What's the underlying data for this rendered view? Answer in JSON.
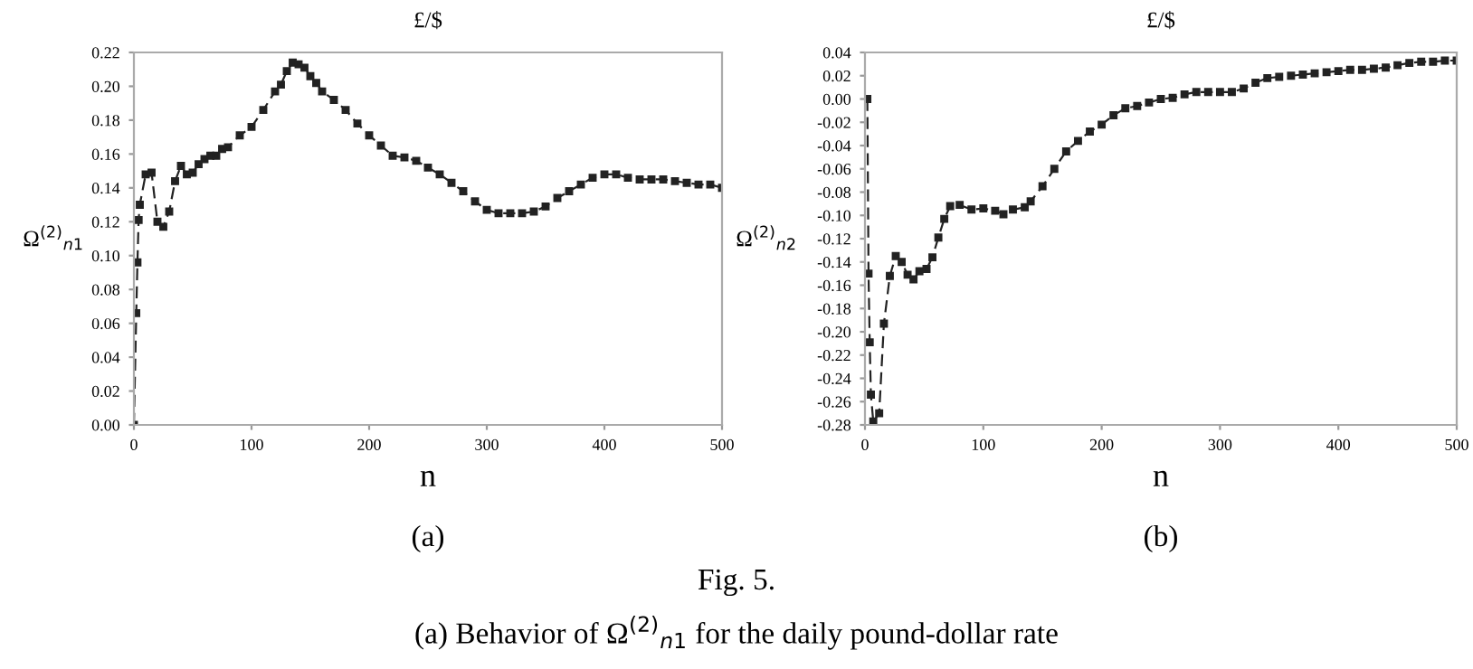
{
  "chart_data": [
    {
      "type": "line",
      "title": "£/$",
      "xlabel": "n",
      "ylabel": "Ω$^{(2)}$$_{n1}$",
      "marker": "square",
      "line_style": "dashed",
      "grid": false,
      "legend": false,
      "xlim": [
        0,
        500
      ],
      "xticks": [
        0,
        100,
        200,
        300,
        400,
        500
      ],
      "ylim": [
        0,
        0.22
      ],
      "yticks": [
        {
          "value": 0,
          "label": "0.00"
        },
        {
          "value": 0.02,
          "label": "0.02"
        },
        {
          "value": 0.04,
          "label": "0.04"
        },
        {
          "value": 0.06,
          "label": "0.06"
        },
        {
          "value": 0.08,
          "label": "0.08"
        },
        {
          "value": 0.1,
          "label": "0.10"
        },
        {
          "value": 0.12,
          "label": "0.12"
        },
        {
          "value": 0.14,
          "label": "0.14"
        },
        {
          "value": 0.16,
          "label": "0.16"
        },
        {
          "value": 0.18,
          "label": "0.18"
        },
        {
          "value": 0.2,
          "label": "0.20"
        },
        {
          "value": 0.22,
          "label": "0.22"
        }
      ],
      "annotations": [
        "(a)",
        "Fig. 5.",
        "(a) Behavior of Ω$^{(2)}$$_{n1}$ for the daily pound-dollar rate"
      ],
      "series": [
        {
          "color": "#222222",
          "x": [
            0,
            2,
            3,
            4,
            5,
            10,
            15,
            20,
            25,
            30,
            35,
            40,
            45,
            50,
            55,
            60,
            65,
            70,
            75,
            80,
            90,
            100,
            110,
            120,
            125,
            130,
            135,
            140,
            145,
            150,
            155,
            160,
            170,
            180,
            190,
            200,
            210,
            220,
            230,
            240,
            250,
            260,
            270,
            280,
            290,
            300,
            310,
            320,
            330,
            340,
            350,
            360,
            370,
            380,
            390,
            400,
            410,
            420,
            430,
            440,
            450,
            460,
            470,
            480,
            490,
            500
          ],
          "values": [
            0.0,
            0.066,
            0.096,
            0.121,
            0.13,
            0.148,
            0.149,
            0.12,
            0.117,
            0.126,
            0.144,
            0.153,
            0.148,
            0.149,
            0.154,
            0.157,
            0.159,
            0.159,
            0.163,
            0.164,
            0.171,
            0.176,
            0.186,
            0.197,
            0.201,
            0.209,
            0.214,
            0.213,
            0.211,
            0.206,
            0.202,
            0.197,
            0.192,
            0.186,
            0.178,
            0.171,
            0.165,
            0.159,
            0.158,
            0.156,
            0.152,
            0.148,
            0.143,
            0.138,
            0.132,
            0.127,
            0.125,
            0.125,
            0.125,
            0.126,
            0.129,
            0.134,
            0.138,
            0.142,
            0.146,
            0.148,
            0.148,
            0.146,
            0.145,
            0.145,
            0.145,
            0.144,
            0.143,
            0.142,
            0.142,
            0.14
          ]
        }
      ]
    },
    {
      "type": "line",
      "title": "£/$",
      "xlabel": "n",
      "ylabel": "Ω$^{(2)}$$_{n2}$",
      "marker": "square",
      "line_style": "dashed",
      "grid": false,
      "legend": false,
      "xlim": [
        0,
        500
      ],
      "xticks": [
        0,
        100,
        200,
        300,
        400,
        500
      ],
      "ylim": [
        -0.28,
        0.04
      ],
      "yticks": [
        {
          "value": -0.28,
          "label": "-0.28"
        },
        {
          "value": -0.26,
          "label": "-0.26"
        },
        {
          "value": -0.24,
          "label": "-0.24"
        },
        {
          "value": -0.22,
          "label": "-0.22"
        },
        {
          "value": -0.2,
          "label": "-0.20"
        },
        {
          "value": -0.18,
          "label": "-0.18"
        },
        {
          "value": -0.16,
          "label": "-0.16"
        },
        {
          "value": -0.14,
          "label": "-0.14"
        },
        {
          "value": -0.12,
          "label": "-0.12"
        },
        {
          "value": -0.1,
          "label": "-0.10"
        },
        {
          "value": -0.08,
          "label": "-0.08"
        },
        {
          "value": -0.06,
          "label": "-0.06"
        },
        {
          "value": -0.04,
          "label": "-0.04"
        },
        {
          "value": -0.02,
          "label": "-0.02"
        },
        {
          "value": 0,
          "label": "0.00"
        },
        {
          "value": 0.02,
          "label": "0.02"
        },
        {
          "value": 0.04,
          "label": "0.04"
        }
      ],
      "annotations": [
        "(b)"
      ],
      "series": [
        {
          "color": "#222222",
          "x": [
            2,
            3,
            4,
            5,
            7,
            12,
            16,
            21,
            26,
            31,
            36,
            41,
            46,
            52,
            57,
            62,
            67,
            72,
            80,
            90,
            100,
            110,
            117,
            125,
            135,
            140,
            150,
            160,
            170,
            180,
            190,
            200,
            210,
            220,
            230,
            240,
            250,
            260,
            270,
            280,
            290,
            300,
            310,
            320,
            330,
            340,
            350,
            360,
            370,
            380,
            390,
            400,
            410,
            420,
            430,
            440,
            450,
            460,
            470,
            480,
            490,
            500
          ],
          "values": [
            0.0,
            -0.15,
            -0.209,
            -0.254,
            -0.277,
            -0.27,
            -0.193,
            -0.152,
            -0.135,
            -0.14,
            -0.151,
            -0.155,
            -0.148,
            -0.146,
            -0.136,
            -0.119,
            -0.103,
            -0.092,
            -0.091,
            -0.095,
            -0.094,
            -0.096,
            -0.099,
            -0.095,
            -0.093,
            -0.088,
            -0.075,
            -0.06,
            -0.045,
            -0.036,
            -0.028,
            -0.022,
            -0.014,
            -0.008,
            -0.006,
            -0.003,
            0.0,
            0.001,
            0.004,
            0.006,
            0.006,
            0.006,
            0.006,
            0.009,
            0.014,
            0.018,
            0.019,
            0.02,
            0.021,
            0.022,
            0.023,
            0.024,
            0.025,
            0.025,
            0.026,
            0.027,
            0.029,
            0.031,
            0.032,
            0.032,
            0.033,
            0.033
          ]
        }
      ]
    }
  ]
}
